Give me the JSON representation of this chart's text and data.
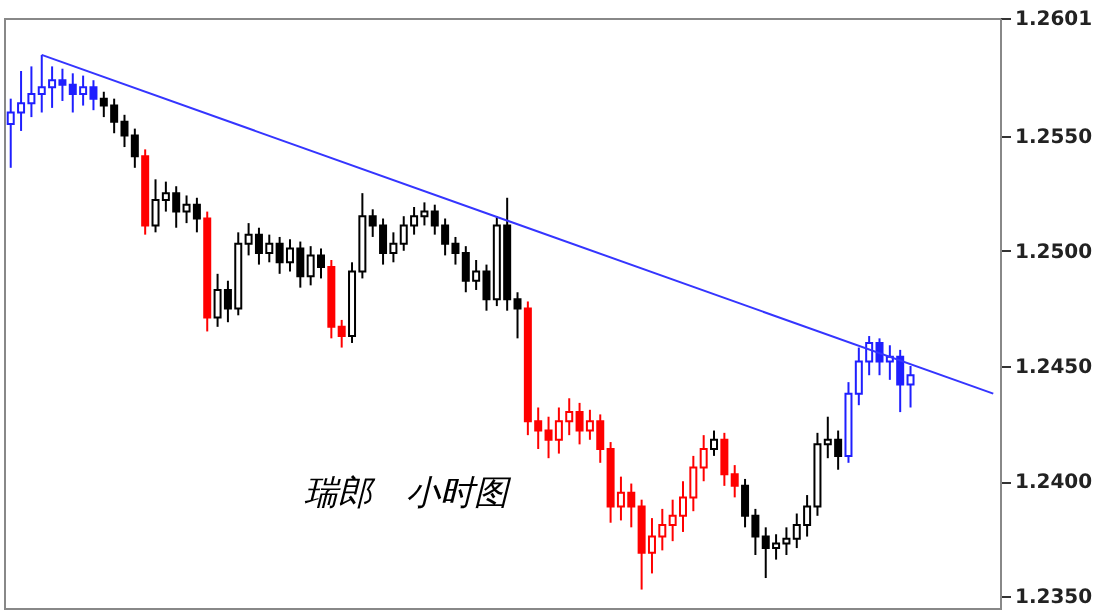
{
  "chart_data": {
    "type": "candlestick",
    "annotations": [
      "瑞郎　小时图"
    ],
    "categories": [
      null,
      null,
      null,
      null,
      null,
      null,
      null,
      null,
      null,
      null,
      null,
      null,
      null,
      null,
      null,
      null,
      null,
      null,
      null,
      null,
      null,
      null,
      null,
      null,
      null,
      null,
      null,
      null,
      null,
      null,
      null,
      null,
      null,
      null,
      null,
      null,
      null,
      null,
      null,
      null,
      null,
      null,
      null,
      null,
      null,
      null,
      null,
      null,
      null,
      null,
      null,
      null,
      null,
      null,
      null,
      null,
      null,
      null,
      null,
      null,
      null,
      null,
      null,
      null,
      null,
      null,
      null,
      null,
      null,
      null,
      null,
      null,
      null,
      null,
      null,
      null,
      null,
      null,
      null,
      null,
      null,
      null,
      null,
      null,
      null,
      null,
      null,
      null,
      null,
      null,
      null,
      null,
      null,
      null,
      null,
      null
    ],
    "ohlc": [
      [
        1.2555,
        1.2566,
        1.2536,
        1.256
      ],
      [
        1.256,
        1.2578,
        1.2552,
        1.2564
      ],
      [
        1.2564,
        1.258,
        1.2558,
        1.2568
      ],
      [
        1.2568,
        1.2585,
        1.256,
        1.2571
      ],
      [
        1.2571,
        1.258,
        1.2562,
        1.2574
      ],
      [
        1.2574,
        1.2579,
        1.2565,
        1.2572
      ],
      [
        1.2572,
        1.2577,
        1.256,
        1.2568
      ],
      [
        1.2568,
        1.2576,
        1.2563,
        1.2571
      ],
      [
        1.2571,
        1.2574,
        1.2561,
        1.2566
      ],
      [
        1.2566,
        1.2569,
        1.2558,
        1.2563
      ],
      [
        1.2563,
        1.2566,
        1.2551,
        1.2556
      ],
      [
        1.2556,
        1.2559,
        1.2545,
        1.255
      ],
      [
        1.255,
        1.2553,
        1.2536,
        1.2541
      ],
      [
        1.2541,
        1.2544,
        1.2507,
        1.2511
      ],
      [
        1.2511,
        1.2531,
        1.2508,
        1.2522
      ],
      [
        1.2522,
        1.253,
        1.2517,
        1.2525
      ],
      [
        1.2525,
        1.2528,
        1.251,
        1.2517
      ],
      [
        1.2517,
        1.2524,
        1.2512,
        1.252
      ],
      [
        1.252,
        1.2523,
        1.2508,
        1.2514
      ],
      [
        1.2514,
        1.2517,
        1.2465,
        1.2471
      ],
      [
        1.2471,
        1.249,
        1.2467,
        1.2483
      ],
      [
        1.2483,
        1.2487,
        1.2469,
        1.2475
      ],
      [
        1.2475,
        1.2508,
        1.2472,
        1.2503
      ],
      [
        1.2503,
        1.2512,
        1.2498,
        1.2507
      ],
      [
        1.2507,
        1.251,
        1.2494,
        1.2499
      ],
      [
        1.2499,
        1.2507,
        1.2495,
        1.2503
      ],
      [
        1.2503,
        1.2506,
        1.249,
        1.2495
      ],
      [
        1.2495,
        1.2505,
        1.2491,
        1.2501
      ],
      [
        1.2501,
        1.2504,
        1.2484,
        1.2489
      ],
      [
        1.2489,
        1.2502,
        1.2485,
        1.2498
      ],
      [
        1.2498,
        1.2501,
        1.2488,
        1.2493
      ],
      [
        1.2493,
        1.2496,
        1.2462,
        1.2467
      ],
      [
        1.2467,
        1.247,
        1.2458,
        1.2463
      ],
      [
        1.2463,
        1.2495,
        1.246,
        1.2491
      ],
      [
        1.2491,
        1.2525,
        1.2488,
        1.2515
      ],
      [
        1.2515,
        1.2518,
        1.2506,
        1.2511
      ],
      [
        1.2511,
        1.2514,
        1.2494,
        1.2499
      ],
      [
        1.2499,
        1.2508,
        1.2495,
        1.2503
      ],
      [
        1.2503,
        1.2515,
        1.25,
        1.2511
      ],
      [
        1.2511,
        1.2519,
        1.2507,
        1.2515
      ],
      [
        1.2515,
        1.2521,
        1.2511,
        1.2517
      ],
      [
        1.2517,
        1.252,
        1.2507,
        1.2511
      ],
      [
        1.2511,
        1.2514,
        1.2498,
        1.2503
      ],
      [
        1.2503,
        1.2506,
        1.2494,
        1.2499
      ],
      [
        1.2499,
        1.2502,
        1.2482,
        1.2487
      ],
      [
        1.2487,
        1.2496,
        1.2483,
        1.2491
      ],
      [
        1.2491,
        1.2494,
        1.2474,
        1.2479
      ],
      [
        1.2479,
        1.2515,
        1.2476,
        1.2511
      ],
      [
        1.2511,
        1.2523,
        1.2474,
        1.2479
      ],
      [
        1.2479,
        1.2482,
        1.2462,
        1.2475
      ],
      [
        1.2475,
        1.2478,
        1.242,
        1.2426
      ],
      [
        1.2426,
        1.2432,
        1.2414,
        1.2422
      ],
      [
        1.2422,
        1.2428,
        1.241,
        1.2418
      ],
      [
        1.2418,
        1.2432,
        1.2412,
        1.2426
      ],
      [
        1.2426,
        1.2436,
        1.242,
        1.243
      ],
      [
        1.243,
        1.2434,
        1.2416,
        1.2422
      ],
      [
        1.2422,
        1.2431,
        1.2418,
        1.2426
      ],
      [
        1.2426,
        1.2429,
        1.2408,
        1.2414
      ],
      [
        1.2414,
        1.2417,
        1.2382,
        1.2389
      ],
      [
        1.2389,
        1.2402,
        1.2383,
        1.2395
      ],
      [
        1.2395,
        1.2399,
        1.238,
        1.2389
      ],
      [
        1.2389,
        1.2392,
        1.2353,
        1.2369
      ],
      [
        1.2369,
        1.2384,
        1.236,
        1.2376
      ],
      [
        1.2376,
        1.2388,
        1.237,
        1.2381
      ],
      [
        1.2381,
        1.2392,
        1.2374,
        1.2385
      ],
      [
        1.2385,
        1.24,
        1.2378,
        1.2393
      ],
      [
        1.2393,
        1.2411,
        1.2387,
        1.2406
      ],
      [
        1.2406,
        1.242,
        1.24,
        1.2414
      ],
      [
        1.2414,
        1.2422,
        1.2411,
        1.2418
      ],
      [
        1.2418,
        1.2421,
        1.2398,
        1.2403
      ],
      [
        1.2403,
        1.2407,
        1.2393,
        1.2398
      ],
      [
        1.2398,
        1.2401,
        1.238,
        1.2385
      ],
      [
        1.2385,
        1.2388,
        1.2368,
        1.2376
      ],
      [
        1.2376,
        1.238,
        1.2358,
        1.2371
      ],
      [
        1.2371,
        1.2377,
        1.2366,
        1.2373
      ],
      [
        1.2373,
        1.238,
        1.2368,
        1.2375
      ],
      [
        1.2375,
        1.2386,
        1.2371,
        1.2381
      ],
      [
        1.2381,
        1.2394,
        1.2376,
        1.2389
      ],
      [
        1.2389,
        1.2421,
        1.2385,
        1.2416
      ],
      [
        1.2416,
        1.2428,
        1.241,
        1.2418
      ],
      [
        1.2418,
        1.2422,
        1.2405,
        1.2411
      ],
      [
        1.2411,
        1.2443,
        1.2408,
        1.2438
      ],
      [
        1.2438,
        1.2458,
        1.2433,
        1.2452
      ],
      [
        1.2452,
        1.2463,
        1.2446,
        1.246
      ],
      [
        1.246,
        1.2462,
        1.2446,
        1.2452
      ],
      [
        1.2452,
        1.2459,
        1.2444,
        1.2454
      ],
      [
        1.2454,
        1.2457,
        1.243,
        1.2442
      ],
      [
        1.2442,
        1.245,
        1.2432,
        1.2446
      ],
      null,
      null,
      null,
      null,
      null,
      null,
      null,
      null
    ],
    "colors": [
      "#1f1fff",
      "#1f1fff",
      "#1f1fff",
      "#1f1fff",
      "#1f1fff",
      "#1f1fff",
      "#1f1fff",
      "#1f1fff",
      "#1f1fff",
      "#000000",
      "#000000",
      "#000000",
      "#000000",
      "#ff0000",
      "#000000",
      "#000000",
      "#000000",
      "#000000",
      "#000000",
      "#ff0000",
      "#000000",
      "#000000",
      "#000000",
      "#000000",
      "#000000",
      "#000000",
      "#000000",
      "#000000",
      "#000000",
      "#000000",
      "#000000",
      "#ff0000",
      "#ff0000",
      "#000000",
      "#000000",
      "#000000",
      "#000000",
      "#000000",
      "#000000",
      "#000000",
      "#000000",
      "#000000",
      "#000000",
      "#000000",
      "#000000",
      "#000000",
      "#000000",
      "#000000",
      "#000000",
      "#000000",
      "#ff0000",
      "#ff0000",
      "#ff0000",
      "#ff0000",
      "#ff0000",
      "#ff0000",
      "#ff0000",
      "#ff0000",
      "#ff0000",
      "#ff0000",
      "#ff0000",
      "#ff0000",
      "#ff0000",
      "#ff0000",
      "#ff0000",
      "#ff0000",
      "#ff0000",
      "#ff0000",
      "#000000",
      "#ff0000",
      "#ff0000",
      "#000000",
      "#000000",
      "#000000",
      "#000000",
      "#000000",
      "#000000",
      "#000000",
      "#000000",
      "#000000",
      "#000000",
      "#1f1fff",
      "#1f1fff",
      "#1f1fff",
      "#1f1fff",
      "#1f1fff",
      "#1f1fff",
      "#1f1fff",
      null,
      null,
      null,
      null,
      null,
      null,
      null,
      null
    ],
    "series": [
      {
        "type": "line",
        "color": "#3535ff",
        "values": [
          null,
          null,
          null,
          1.2585,
          null,
          null,
          null,
          null,
          null,
          null,
          null,
          null,
          null,
          null,
          null,
          null,
          null,
          null,
          null,
          null,
          null,
          null,
          null,
          null,
          null,
          null,
          null,
          null,
          null,
          null,
          null,
          null,
          null,
          null,
          null,
          null,
          null,
          null,
          null,
          null,
          null,
          null,
          null,
          null,
          null,
          null,
          null,
          null,
          null,
          null,
          null,
          null,
          null,
          null,
          null,
          null,
          null,
          null,
          null,
          null,
          null,
          null,
          null,
          null,
          null,
          null,
          null,
          null,
          null,
          null,
          null,
          null,
          null,
          null,
          null,
          null,
          null,
          null,
          null,
          null,
          null,
          null,
          null,
          null,
          null,
          null,
          null,
          null,
          null,
          null,
          null,
          null,
          null,
          null,
          null,
          1.2438
        ]
      }
    ],
    "ylim": [
      1.2345,
      1.2601
    ],
    "yticks": [
      {
        "value": 1.235,
        "label": "1.2350"
      },
      {
        "value": 1.24,
        "label": "1.2400"
      },
      {
        "value": 1.245,
        "label": "1.2450"
      },
      {
        "value": 1.25,
        "label": "1.2500"
      },
      {
        "value": 1.255,
        "label": "1.2550"
      },
      {
        "value": 1.2601,
        "label": "1.2601"
      }
    ],
    "tick_labels": "y"
  }
}
